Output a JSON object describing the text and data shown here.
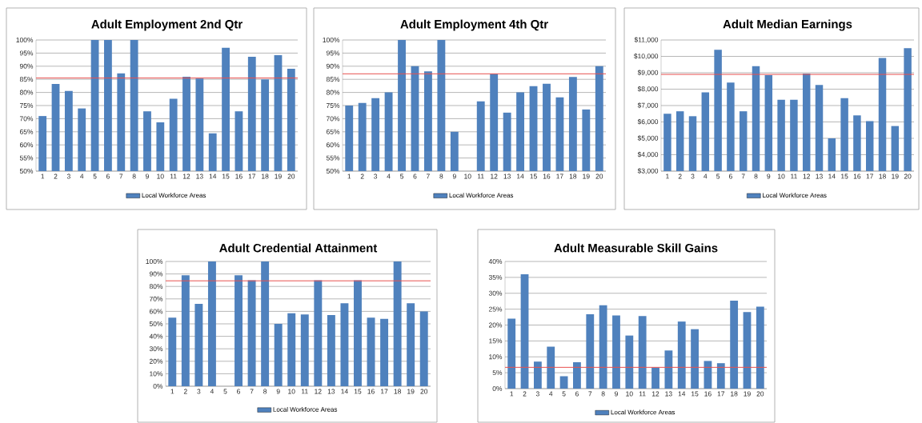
{
  "chart_data": [
    {
      "type": "bar",
      "title": "Adult Employment 2nd Qtr",
      "categories": [
        "1",
        "2",
        "3",
        "4",
        "5",
        "6",
        "7",
        "8",
        "9",
        "10",
        "11",
        "12",
        "13",
        "14",
        "15",
        "16",
        "17",
        "18",
        "19",
        "20"
      ],
      "series": [
        {
          "name": "Local Workforce Areas",
          "color": "#4f81bd",
          "values": [
            71,
            83.2,
            80.6,
            73.9,
            100,
            100,
            87.3,
            100,
            72.8,
            68.6,
            77.6,
            86,
            85.3,
            64.4,
            97,
            72.8,
            93.6,
            85,
            94.2,
            89
          ]
        }
      ],
      "ylim": [
        50,
        100
      ],
      "yticks": [
        {
          "value": 50,
          "label": "50%"
        },
        {
          "value": 55,
          "label": "55%"
        },
        {
          "value": 60,
          "label": "60%"
        },
        {
          "value": 65,
          "label": "65%"
        },
        {
          "value": 70,
          "label": "70%"
        },
        {
          "value": 75,
          "label": "75%"
        },
        {
          "value": 80,
          "label": "80%"
        },
        {
          "value": 85,
          "label": "85%"
        },
        {
          "value": 90,
          "label": "90%"
        },
        {
          "value": 95,
          "label": "95%"
        },
        {
          "value": 100,
          "label": "100%"
        }
      ],
      "grid": "y",
      "legend": "bottom",
      "ref_lines": [
        {
          "axis": "y",
          "value": 85.5,
          "color": "#e8504f"
        }
      ]
    },
    {
      "type": "bar",
      "title": "Adult Employment 4th Qtr",
      "categories": [
        "1",
        "2",
        "3",
        "4",
        "5",
        "6",
        "7",
        "8",
        "9",
        "10",
        "11",
        "12",
        "13",
        "14",
        "15",
        "16",
        "17",
        "18",
        "19",
        "20"
      ],
      "series": [
        {
          "name": "Local Workforce Areas",
          "color": "#4f81bd",
          "values": [
            75,
            76,
            77.8,
            80,
            100,
            90,
            88,
            100,
            65,
            null,
            76.6,
            87.1,
            72.3,
            80,
            82.4,
            83.3,
            78.1,
            85.9,
            73.5,
            90
          ]
        }
      ],
      "ylim": [
        50,
        100
      ],
      "yticks": [
        {
          "value": 50,
          "label": "50%"
        },
        {
          "value": 55,
          "label": "55%"
        },
        {
          "value": 60,
          "label": "60%"
        },
        {
          "value": 65,
          "label": "65%"
        },
        {
          "value": 70,
          "label": "70%"
        },
        {
          "value": 75,
          "label": "75%"
        },
        {
          "value": 80,
          "label": "80%"
        },
        {
          "value": 85,
          "label": "85%"
        },
        {
          "value": 90,
          "label": "90%"
        },
        {
          "value": 95,
          "label": "95%"
        },
        {
          "value": 100,
          "label": "100%"
        }
      ],
      "grid": "y",
      "legend": "bottom",
      "ref_lines": [
        {
          "axis": "y",
          "value": 87.1,
          "color": "#e8504f"
        }
      ]
    },
    {
      "type": "bar",
      "title": "Adult Median Earnings",
      "categories": [
        "1",
        "2",
        "3",
        "4",
        "5",
        "6",
        "7",
        "8",
        "9",
        "10",
        "11",
        "12",
        "13",
        "14",
        "15",
        "16",
        "17",
        "18",
        "19",
        "20"
      ],
      "series": [
        {
          "name": "Local Workforce Areas",
          "color": "#4f81bd",
          "values": [
            6500,
            6650,
            6350,
            7800,
            10400,
            8400,
            6650,
            9400,
            8850,
            7350,
            7350,
            8950,
            8250,
            5000,
            7450,
            6400,
            6050,
            9900,
            5750,
            10500
          ]
        }
      ],
      "ylim": [
        3000,
        11000
      ],
      "yticks": [
        {
          "value": 3000,
          "label": "$3,000"
        },
        {
          "value": 4000,
          "label": "$4,000"
        },
        {
          "value": 5000,
          "label": "$5,000"
        },
        {
          "value": 6000,
          "label": "$6,000"
        },
        {
          "value": 7000,
          "label": "$7,000"
        },
        {
          "value": 8000,
          "label": "$8,000"
        },
        {
          "value": 9000,
          "label": "$9,000"
        },
        {
          "value": 10000,
          "label": "$10,000"
        },
        {
          "value": 11000,
          "label": "$11,000"
        }
      ],
      "grid": "y",
      "legend": "bottom",
      "ref_lines": [
        {
          "axis": "y",
          "value": 8900,
          "color": "#e8504f"
        }
      ]
    },
    {
      "type": "bar",
      "title": "Adult Credential Attainment",
      "categories": [
        "1",
        "2",
        "3",
        "4",
        "5",
        "6",
        "7",
        "8",
        "9",
        "10",
        "11",
        "12",
        "13",
        "14",
        "15",
        "16",
        "17",
        "18",
        "19",
        "20"
      ],
      "series": [
        {
          "name": "Local Workforce Areas",
          "color": "#4f81bd",
          "values": [
            55,
            89,
            66,
            100,
            null,
            89,
            85,
            100,
            50,
            58.5,
            57.5,
            85,
            57,
            66.5,
            85,
            55,
            54,
            100,
            66.5,
            60
          ]
        }
      ],
      "ylim": [
        0,
        100
      ],
      "yticks": [
        {
          "value": 0,
          "label": "0%"
        },
        {
          "value": 10,
          "label": "10%"
        },
        {
          "value": 20,
          "label": "20%"
        },
        {
          "value": 30,
          "label": "30%"
        },
        {
          "value": 40,
          "label": "40%"
        },
        {
          "value": 50,
          "label": "50%"
        },
        {
          "value": 60,
          "label": "60%"
        },
        {
          "value": 70,
          "label": "70%"
        },
        {
          "value": 80,
          "label": "80%"
        },
        {
          "value": 90,
          "label": "90%"
        },
        {
          "value": 100,
          "label": "100%"
        }
      ],
      "grid": "y",
      "legend": "bottom",
      "ref_lines": [
        {
          "axis": "y",
          "value": 84.5,
          "color": "#e8504f"
        }
      ]
    },
    {
      "type": "bar",
      "title": "Adult Measurable Skill Gains",
      "categories": [
        "1",
        "2",
        "3",
        "4",
        "5",
        "6",
        "7",
        "8",
        "9",
        "10",
        "11",
        "12",
        "13",
        "14",
        "15",
        "16",
        "17",
        "18",
        "19",
        "20"
      ],
      "series": [
        {
          "name": "Local Workforce Areas",
          "color": "#4f81bd",
          "values": [
            22,
            36,
            8.5,
            13.2,
            3.9,
            8.3,
            23.4,
            26.2,
            23,
            16.7,
            22.8,
            6.6,
            12,
            21.1,
            18.7,
            8.7,
            8,
            27.7,
            24.1,
            25.8
          ]
        }
      ],
      "ylim": [
        0,
        40
      ],
      "yticks": [
        {
          "value": 0,
          "label": "0%"
        },
        {
          "value": 5,
          "label": "5%"
        },
        {
          "value": 10,
          "label": "10%"
        },
        {
          "value": 15,
          "label": "15%"
        },
        {
          "value": 20,
          "label": "20%"
        },
        {
          "value": 25,
          "label": "25%"
        },
        {
          "value": 30,
          "label": "30%"
        },
        {
          "value": 35,
          "label": "35%"
        },
        {
          "value": 40,
          "label": "40%"
        }
      ],
      "grid": "y",
      "legend": "bottom",
      "ref_lines": [
        {
          "axis": "y",
          "value": 6.7,
          "color": "#e8504f"
        }
      ]
    }
  ]
}
